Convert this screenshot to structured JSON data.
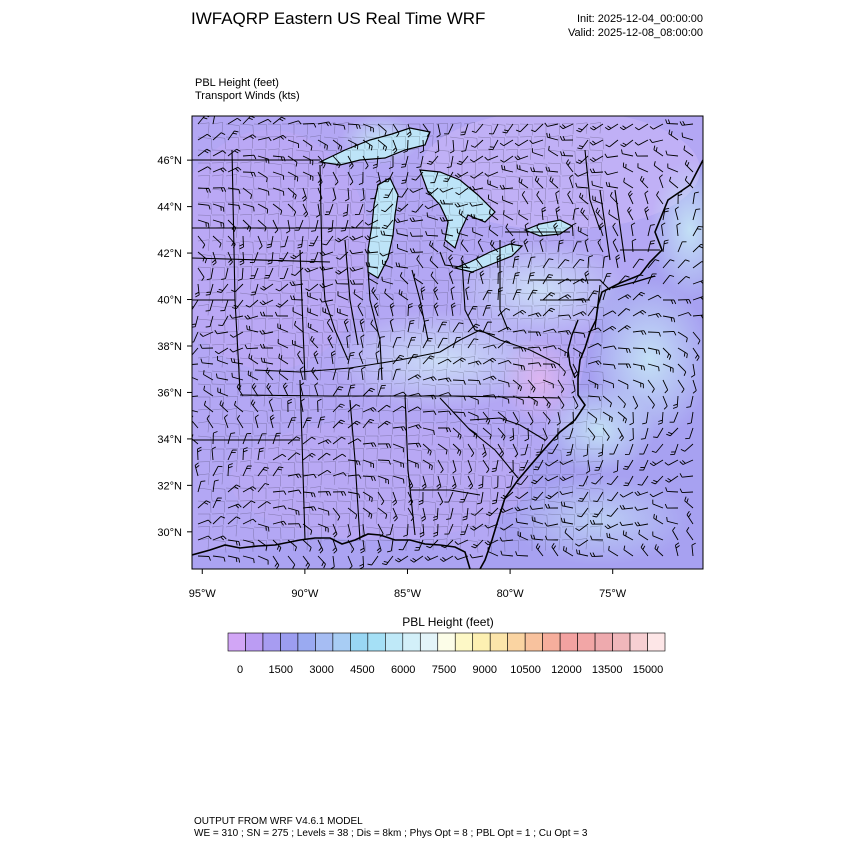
{
  "header": {
    "title": "IWFAQRP Eastern US Real Time WRF",
    "init": "Init: 2025-12-04_00:00:00",
    "valid": "Valid: 2025-12-08_08:00:00",
    "field_line1": "PBL Height   (feet)",
    "field_line2": "Transport Winds   (kts)"
  },
  "map": {
    "lat_labels": [
      "46°N",
      "44°N",
      "42°N",
      "40°N",
      "38°N",
      "36°N",
      "34°N",
      "32°N",
      "30°N"
    ],
    "lat_values": [
      46,
      44,
      42,
      40,
      38,
      36,
      34,
      32,
      30
    ],
    "lon_labels": [
      "95°W",
      "90°W",
      "85°W",
      "80°W",
      "75°W"
    ],
    "lon_values": [
      -95,
      -90,
      -85,
      -80,
      -75
    ],
    "lat_range": [
      28.4,
      47.9
    ],
    "lon_range": [
      -95.5,
      -70.6
    ],
    "land_color": "#c3aef5",
    "water_color": "#a7a1f1",
    "coast_glow_color": "#c6e7f6",
    "boundary_color": "#000000"
  },
  "colorbar": {
    "title": "PBL Height  (feet)",
    "tick_labels": [
      "0",
      "1500",
      "3000",
      "4500",
      "6000",
      "7500",
      "9000",
      "10500",
      "12000",
      "13500",
      "15000"
    ],
    "colors": [
      "#d2a6f6",
      "#bb9cf3",
      "#a79cf1",
      "#9c9df0",
      "#9aaaf1",
      "#a6bdf3",
      "#a8cdf4",
      "#99d7f4",
      "#a5e0f6",
      "#bfe9f8",
      "#d3f0f9",
      "#e3f4f9",
      "#fcfde8",
      "#fdf8c6",
      "#fdf0b2",
      "#fce5aa",
      "#fad4a2",
      "#f8c29e",
      "#f6ae9c",
      "#f3a2a1",
      "#f2a6a6",
      "#eeaaae",
      "#f0b7bb",
      "#f7cfd2",
      "#fde6e7"
    ]
  },
  "footer": {
    "line1": "OUTPUT FROM WRF V4.6.1 MODEL",
    "line2": "WE = 310 ; SN = 275 ; Levels = 38 ; Dis = 8km ; Phys Opt = 8 ; PBL Opt = 1 ; Cu Opt = 3"
  }
}
